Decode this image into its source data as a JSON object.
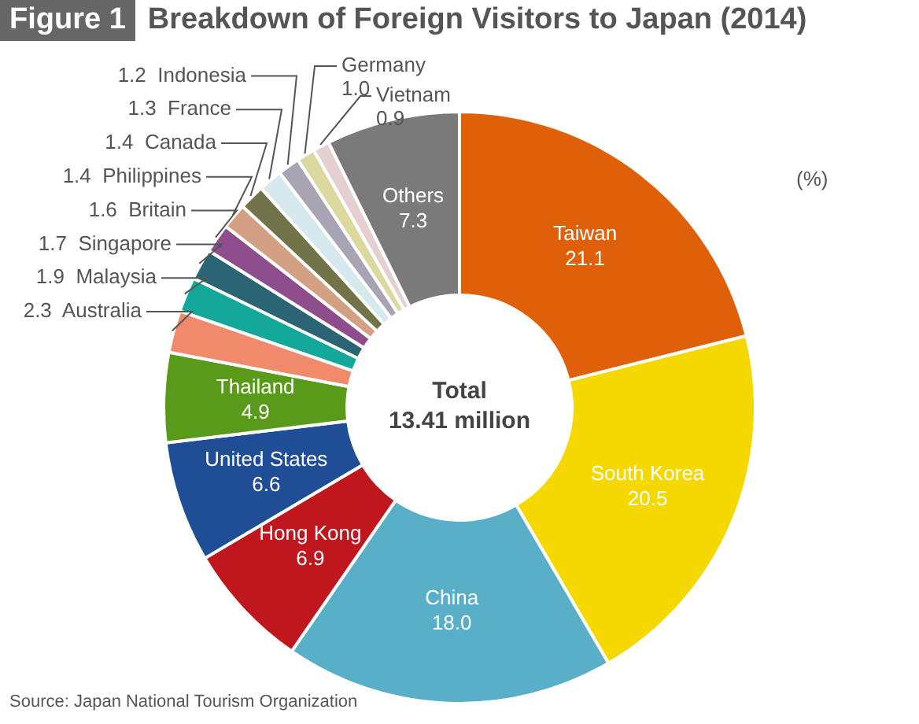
{
  "chart_data": {
    "type": "donut",
    "title": "Breakdown of Foreign Visitors to Japan (2014)",
    "categories": [
      "Taiwan",
      "South Korea",
      "China",
      "Hong Kong",
      "United States",
      "Thailand",
      "Australia",
      "Malaysia",
      "Singapore",
      "Britain",
      "Philippines",
      "Canada",
      "France",
      "Indonesia",
      "Germany",
      "Vietnam",
      "Others"
    ],
    "values": [
      21.1,
      20.5,
      18.0,
      6.9,
      6.6,
      4.9,
      2.3,
      1.9,
      1.7,
      1.6,
      1.4,
      1.4,
      1.3,
      1.2,
      1.0,
      0.9,
      7.3
    ],
    "value_labels": [
      "21.1",
      "20.5",
      "18.0",
      "6.9",
      "6.6",
      "4.9",
      "2.3",
      "1.9",
      "1.7",
      "1.6",
      "1.4",
      "1.4",
      "1.3",
      "1.2",
      "1.0",
      "0.9",
      "7.3"
    ],
    "colors": [
      "#e0600a",
      "#f5d800",
      "#5aafc8",
      "#c0171f",
      "#1f4e96",
      "#5a9a1a",
      "#f08a6a",
      "#14a89a",
      "#2a6475",
      "#8e4e8e",
      "#d4a084",
      "#737349",
      "#d6e9ef",
      "#a8a4b4",
      "#dcd9a0",
      "#e4d0d0",
      "#7a7a7a"
    ],
    "annotations": [
      "Figure 1",
      "Total 13.41 million",
      "(%)",
      "Source: Japan National Tourism Organization"
    ]
  }
}
